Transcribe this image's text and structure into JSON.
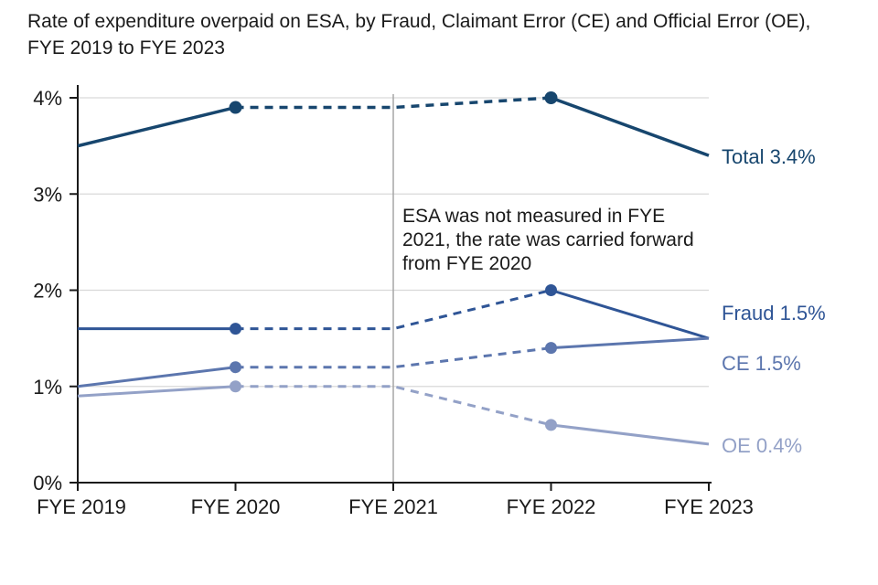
{
  "title": "Rate of expenditure overpaid on ESA, by Fraud, Claimant Error (CE) and Official Error (OE), FYE 2019 to FYE 2023",
  "annotation": {
    "text": "ESA was not measured in FYE 2021, the rate was carried forward from FYE 2020"
  },
  "chart_data": {
    "type": "line",
    "title": "Rate of expenditure overpaid on ESA, by Fraud, Claimant Error (CE) and Official Error (OE), FYE 2019 to FYE 2023",
    "categories": [
      "FYE 2019",
      "FYE 2020",
      "FYE 2021",
      "FYE 2022",
      "FYE 2023"
    ],
    "series": [
      {
        "name": "Total",
        "values": [
          3.5,
          3.9,
          3.9,
          4.0,
          3.4
        ],
        "color": "#17466E",
        "end_label": "Total 3.4%"
      },
      {
        "name": "Fraud",
        "values": [
          1.6,
          1.6,
          1.6,
          2.0,
          1.5
        ],
        "color": "#2F5596",
        "end_label": "Fraud 1.5%"
      },
      {
        "name": "CE",
        "values": [
          1.0,
          1.2,
          1.2,
          1.4,
          1.5
        ],
        "color": "#5C76AE",
        "end_label": "CE 1.5%"
      },
      {
        "name": "OE",
        "values": [
          0.9,
          1.0,
          1.0,
          0.6,
          0.4
        ],
        "color": "#93A1C7",
        "end_label": "OE 0.4%"
      }
    ],
    "xlabel": "",
    "ylabel": "",
    "ylim": [
      0,
      4
    ],
    "y_tick_labels": [
      "0%",
      "1%",
      "2%",
      "3%",
      "4%"
    ],
    "grid": "horizontal",
    "dashed_segment_between": [
      "FYE 2020",
      "FYE 2022"
    ],
    "markers_at": [
      "FYE 2020",
      "FYE 2022"
    ],
    "vertical_reference_line_at": "FYE 2021",
    "legend_position": "right-end-labels",
    "annotation_text": "ESA was not measured in FYE 2021, the rate was carried forward from FYE 2020"
  },
  "colors": {
    "grid": "#D9D9D9",
    "axis": "#1A1A1A",
    "tick_text": "#1A1A1A",
    "vertical_line": "#A6A6A6",
    "background": "#FFFFFF"
  }
}
